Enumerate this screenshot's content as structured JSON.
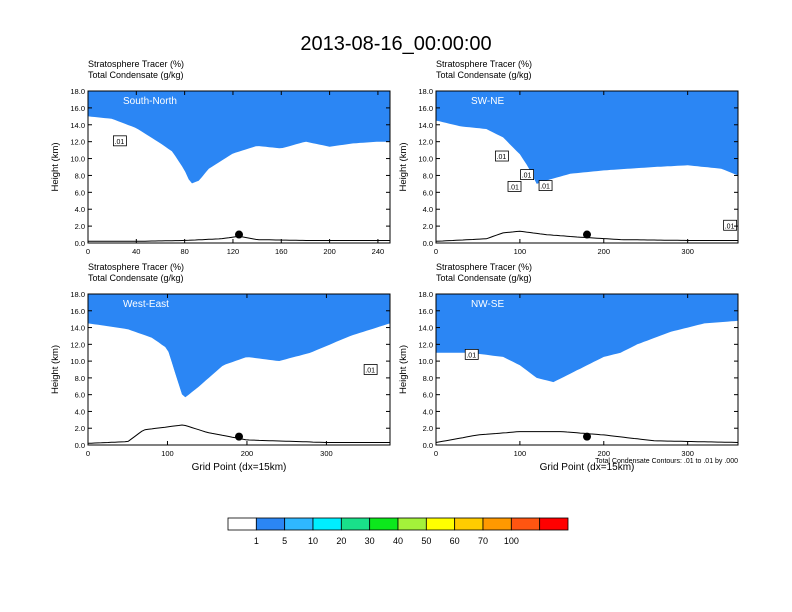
{
  "page_title": "2013-08-16_00:00:00",
  "footnote": "Total Condensate Contours: .01 to .01 by .000",
  "colors": {
    "levels": [
      "#ffffff",
      "#2b86f4",
      "#2fb7ff",
      "#00eeff",
      "#19e08a",
      "#0ce81c",
      "#a4f23a",
      "#ffff00",
      "#ffcc00",
      "#ff9900",
      "#ff5511",
      "#ff0000"
    ],
    "terrain_line": "#000000",
    "contour_line": "#000000"
  },
  "chart_data": [
    {
      "type": "contour",
      "panel_label": "South-North",
      "title_line1": "Stratosphere Tracer   (%)",
      "title_line2": "Total Condensate   (g/kg)",
      "ylabel": "Height (km)",
      "xlabel": "",
      "xlim": [
        0,
        250
      ],
      "ylim": [
        0,
        18
      ],
      "xticks": [
        "0",
        "40",
        "80",
        "120",
        "160",
        "200",
        "240"
      ],
      "yticks": [
        "0.0",
        "2.0",
        "4.0",
        "6.0",
        "8.0",
        "10.0",
        "12.0",
        "14.0",
        "16.0",
        "18.0"
      ],
      "contour_labels": [
        {
          "text": ".01",
          "x": 26,
          "y": 12.1
        }
      ],
      "marker": {
        "x": 125,
        "y": 1.0
      },
      "tracer_base_km": [
        [
          0,
          15.0
        ],
        [
          20,
          14.7
        ],
        [
          40,
          13.6
        ],
        [
          60,
          11.8
        ],
        [
          70,
          10.8
        ],
        [
          80,
          8.6
        ],
        [
          85,
          7.0
        ],
        [
          92,
          7.4
        ],
        [
          100,
          8.8
        ],
        [
          120,
          10.6
        ],
        [
          140,
          11.5
        ],
        [
          160,
          11.2
        ],
        [
          180,
          12.0
        ],
        [
          200,
          11.4
        ],
        [
          220,
          11.8
        ],
        [
          240,
          12.0
        ],
        [
          250,
          12.0
        ]
      ],
      "terrain_km": [
        [
          0,
          0.2
        ],
        [
          40,
          0.2
        ],
        [
          80,
          0.3
        ],
        [
          110,
          0.5
        ],
        [
          125,
          0.8
        ],
        [
          140,
          0.4
        ],
        [
          180,
          0.3
        ],
        [
          250,
          0.3
        ]
      ]
    },
    {
      "type": "contour",
      "panel_label": "SW-NE",
      "title_line1": "Stratosphere Tracer   (%)",
      "title_line2": "Total Condensate   (g/kg)",
      "ylabel": "Height (km)",
      "xlabel": "",
      "xlim": [
        0,
        360
      ],
      "ylim": [
        0,
        18
      ],
      "xticks": [
        "0",
        "100",
        "200",
        "300"
      ],
      "yticks": [
        "0.0",
        "2.0",
        "4.0",
        "6.0",
        "8.0",
        "10.0",
        "12.0",
        "14.0",
        "16.0",
        "18.0"
      ],
      "contour_labels": [
        {
          "text": ".01",
          "x": 78,
          "y": 10.3
        },
        {
          "text": ".01",
          "x": 108,
          "y": 8.1
        },
        {
          "text": ".01",
          "x": 93,
          "y": 6.7
        },
        {
          "text": ".01",
          "x": 130,
          "y": 6.8
        },
        {
          "text": ".01",
          "x": 350,
          "y": 2.1
        }
      ],
      "marker": {
        "x": 180,
        "y": 1.0
      },
      "tracer_base_km": [
        [
          0,
          14.5
        ],
        [
          30,
          13.8
        ],
        [
          60,
          13.5
        ],
        [
          80,
          12.5
        ],
        [
          100,
          10.5
        ],
        [
          110,
          9.0
        ],
        [
          120,
          7.0
        ],
        [
          135,
          7.5
        ],
        [
          160,
          8.2
        ],
        [
          200,
          8.6
        ],
        [
          260,
          9.0
        ],
        [
          300,
          9.2
        ],
        [
          340,
          8.8
        ],
        [
          360,
          8.0
        ]
      ],
      "terrain_km": [
        [
          0,
          0.2
        ],
        [
          60,
          0.5
        ],
        [
          80,
          1.2
        ],
        [
          100,
          1.4
        ],
        [
          130,
          1.0
        ],
        [
          170,
          0.7
        ],
        [
          220,
          0.4
        ],
        [
          300,
          0.3
        ],
        [
          360,
          0.3
        ]
      ]
    },
    {
      "type": "contour",
      "panel_label": "West-East",
      "title_line1": "Stratosphere Tracer   (%)",
      "title_line2": "Total Condensate   (g/kg)",
      "ylabel": "Height (km)",
      "xlabel": "Grid Point (dx=15km)",
      "xlim": [
        0,
        380
      ],
      "ylim": [
        0,
        18
      ],
      "xticks": [
        "0",
        "100",
        "200",
        "300"
      ],
      "yticks": [
        "0.0",
        "2.0",
        "4.0",
        "6.0",
        "8.0",
        "10.0",
        "12.0",
        "14.0",
        "16.0",
        "18.0"
      ],
      "contour_labels": [
        {
          "text": ".01",
          "x": 355,
          "y": 9.0
        }
      ],
      "marker": {
        "x": 190,
        "y": 1.0
      },
      "tracer_base_km": [
        [
          0,
          14.5
        ],
        [
          50,
          13.8
        ],
        [
          80,
          12.8
        ],
        [
          100,
          11.5
        ],
        [
          110,
          8.5
        ],
        [
          120,
          5.5
        ],
        [
          140,
          7.0
        ],
        [
          170,
          9.5
        ],
        [
          200,
          10.5
        ],
        [
          240,
          10.0
        ],
        [
          280,
          11.0
        ],
        [
          330,
          13.0
        ],
        [
          380,
          14.5
        ]
      ],
      "terrain_km": [
        [
          0,
          0.2
        ],
        [
          50,
          0.4
        ],
        [
          70,
          1.8
        ],
        [
          120,
          2.4
        ],
        [
          150,
          1.5
        ],
        [
          200,
          0.6
        ],
        [
          300,
          0.3
        ],
        [
          380,
          0.3
        ]
      ]
    },
    {
      "type": "contour",
      "panel_label": "NW-SE",
      "title_line1": "Stratosphere Tracer   (%)",
      "title_line2": "Total Condensate   (g/kg)",
      "ylabel": "Height (km)",
      "xlabel": "Grid Point (dx=15km)",
      "xlim": [
        0,
        360
      ],
      "ylim": [
        0,
        18
      ],
      "xticks": [
        "0",
        "100",
        "200",
        "300"
      ],
      "yticks": [
        "0.0",
        "2.0",
        "4.0",
        "6.0",
        "8.0",
        "10.0",
        "12.0",
        "14.0",
        "16.0",
        "18.0"
      ],
      "contour_labels": [
        {
          "text": ".01",
          "x": 42,
          "y": 10.8
        }
      ],
      "marker": {
        "x": 180,
        "y": 1.0
      },
      "tracer_base_km": [
        [
          0,
          11.0
        ],
        [
          40,
          11.0
        ],
        [
          80,
          10.5
        ],
        [
          100,
          9.5
        ],
        [
          120,
          8.0
        ],
        [
          140,
          7.5
        ],
        [
          170,
          9.0
        ],
        [
          200,
          10.5
        ],
        [
          220,
          11.0
        ],
        [
          240,
          12.0
        ],
        [
          280,
          13.5
        ],
        [
          320,
          14.5
        ],
        [
          360,
          14.8
        ]
      ],
      "terrain_km": [
        [
          0,
          0.3
        ],
        [
          50,
          1.2
        ],
        [
          100,
          1.6
        ],
        [
          150,
          1.6
        ],
        [
          200,
          1.2
        ],
        [
          260,
          0.5
        ],
        [
          360,
          0.3
        ]
      ]
    }
  ],
  "colorbar": {
    "labels": [
      "1",
      "5",
      "10",
      "20",
      "30",
      "40",
      "50",
      "60",
      "70",
      "100"
    ]
  }
}
